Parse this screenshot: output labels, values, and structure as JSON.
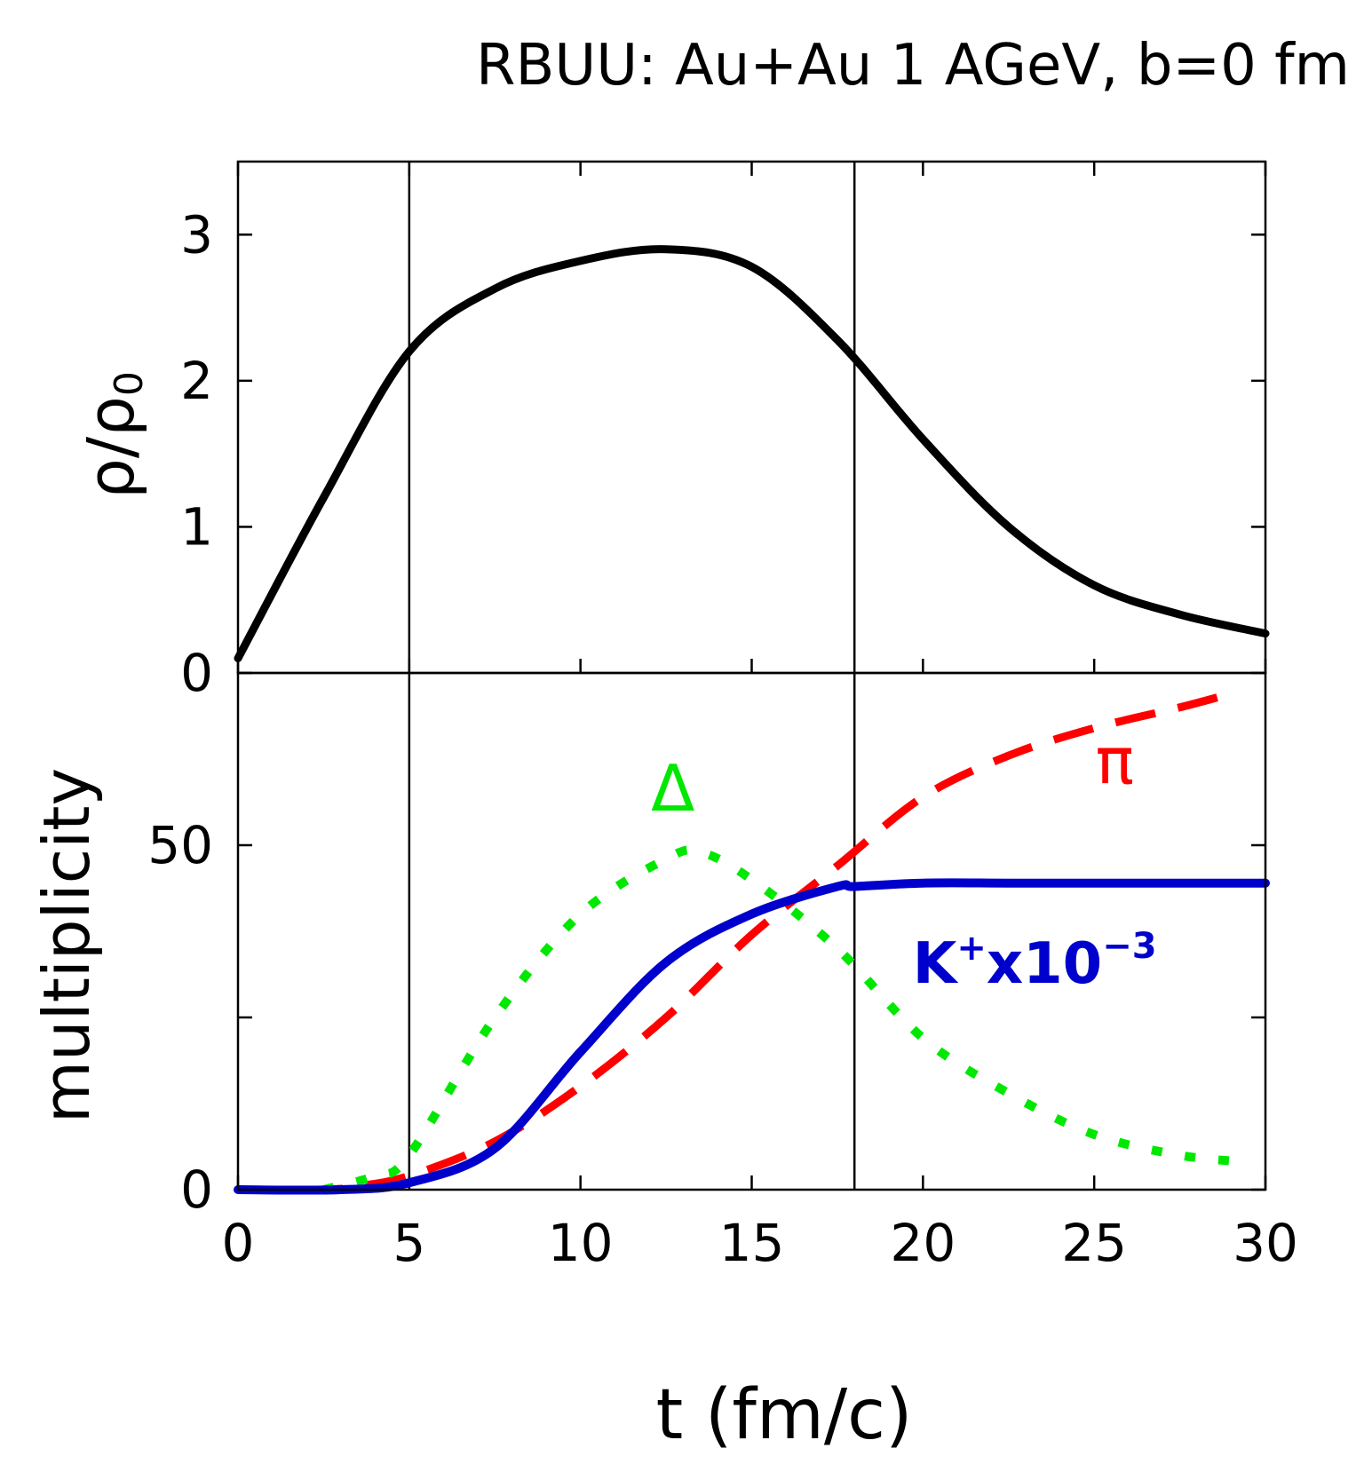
{
  "chart_data": [
    {
      "panel": "top",
      "type": "line",
      "title": "RBUU:   Au+Au 1 AGeV, b=0  fm",
      "xlabel": "t  (fm/c)",
      "ylabel": "ρ/ρ0",
      "ylabel_main": "ρ/ρ",
      "ylabel_sub": "0",
      "xlim": [
        0,
        30
      ],
      "ylim": [
        0,
        3.5
      ],
      "yticks": [
        0,
        1,
        2,
        3
      ],
      "ytick_labels": [
        "0",
        "1",
        "2",
        "3"
      ],
      "series": [
        {
          "name": "ρ/ρ0",
          "color": "#000000",
          "style": "solid",
          "x": [
            0,
            2.5,
            5,
            7.5,
            10,
            12.5,
            15,
            17.5,
            20,
            22.5,
            25,
            27.5,
            30
          ],
          "y": [
            0.1,
            1.2,
            2.2,
            2.63,
            2.82,
            2.9,
            2.78,
            2.28,
            1.6,
            1.0,
            0.6,
            0.4,
            0.27
          ]
        }
      ]
    },
    {
      "panel": "bottom",
      "type": "line",
      "xlabel": "t  (fm/c)",
      "ylabel": "multiplicity",
      "xlim": [
        0,
        30
      ],
      "ylim": [
        0,
        75
      ],
      "xticks": [
        0,
        5,
        10,
        15,
        20,
        25,
        30
      ],
      "xtick_labels": [
        "0",
        "5",
        "10",
        "15",
        "20",
        "25",
        "30"
      ],
      "yticks": [
        0,
        25,
        50,
        75
      ],
      "ytick_labels": [
        "0",
        "",
        "50",
        ""
      ],
      "vertical_lines_x": [
        5,
        18
      ],
      "series": [
        {
          "name": "π",
          "color": "#ff0000",
          "style": "dashed",
          "x": [
            0,
            2.5,
            3.5,
            5,
            7.5,
            10,
            12.5,
            15,
            17.5,
            20,
            22.5,
            25,
            27.5,
            29
          ],
          "y": [
            0,
            0,
            0.5,
            2,
            7,
            15,
            25,
            37,
            47,
            57,
            63,
            67,
            70,
            72
          ]
        },
        {
          "name": "Δ",
          "color": "#00e800",
          "style": "dotted",
          "x": [
            2.5,
            4,
            5,
            7.5,
            10,
            12.5,
            13.5,
            15,
            17.5,
            20,
            22.5,
            25,
            27.5,
            29.5
          ],
          "y": [
            0,
            2,
            5,
            25,
            40,
            48,
            49,
            45,
            35,
            22,
            14,
            8,
            5,
            4
          ]
        },
        {
          "name": "K⁺x10⁻³",
          "color": "#0000cc",
          "style": "solid",
          "x": [
            0,
            3,
            5,
            7.5,
            10,
            12.5,
            15,
            17.5,
            18,
            20,
            22.5,
            25,
            27.5,
            30
          ],
          "y": [
            0,
            0,
            1,
            6,
            20,
            33,
            40,
            44,
            44,
            44.5,
            44.5,
            44.5,
            44.5,
            44.5
          ]
        }
      ],
      "annotations": [
        {
          "text": "Δ",
          "color": "#00e800",
          "x": 12.7,
          "y": 55
        },
        {
          "text": "π",
          "color": "#ff0000",
          "x": 25.6,
          "y": 59
        },
        {
          "text_main": "K",
          "text_sup1": "+",
          "text_mid": "x10",
          "text_sup2": "−3",
          "color": "#0000cc",
          "x": 19.7,
          "y": 30
        }
      ]
    }
  ]
}
